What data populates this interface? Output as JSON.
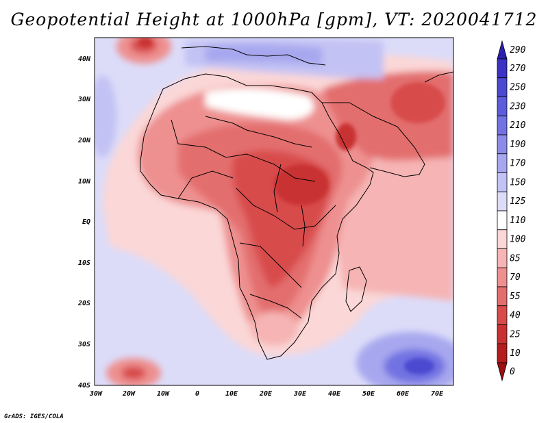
{
  "title": "Geopotential Height at 1000hPa [gpm], VT: 2020041712",
  "credit": "GrADS: IGES/COLA",
  "lat_labels": [
    "40N",
    "30N",
    "20N",
    "10N",
    "EQ",
    "10S",
    "20S",
    "30S",
    "40S"
  ],
  "lon_labels": [
    "30W",
    "20W",
    "10W",
    "0",
    "10E",
    "20E",
    "30E",
    "40E",
    "50E",
    "60E",
    "70E"
  ],
  "colorbar": {
    "levels": [
      "290",
      "270",
      "250",
      "230",
      "210",
      "190",
      "170",
      "150",
      "125",
      "110",
      "100",
      "85",
      "70",
      "55",
      "40",
      "25",
      "10",
      "0"
    ],
    "colors": [
      "#2a1fb0",
      "#3a33c4",
      "#4c48d0",
      "#5d5cda",
      "#7272e2",
      "#8c8ce8",
      "#a7a7ef",
      "#c2c2f4",
      "#dcdcf9",
      "#ffffff",
      "#fbd7d7",
      "#f6b4b4",
      "#ee9090",
      "#e36e6e",
      "#d84c4c",
      "#c93232",
      "#b31d1d",
      "#9c1010"
    ]
  },
  "chart_data": {
    "type": "heatmap",
    "variable": "Geopotential Height at 1000hPa",
    "units": "gpm",
    "valid_time": "2020041712",
    "x_range": [
      -30,
      75
    ],
    "y_range": [
      -40,
      45
    ],
    "contour_levels": [
      0,
      10,
      25,
      40,
      55,
      70,
      85,
      100,
      110,
      125,
      150,
      170,
      190,
      210,
      230,
      250,
      270,
      290
    ]
  }
}
